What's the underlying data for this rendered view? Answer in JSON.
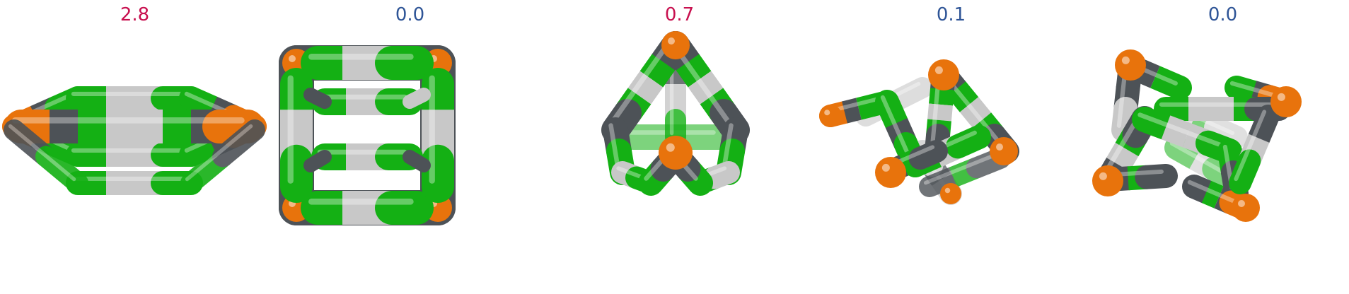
{
  "palette": {
    "orange": "#e8730c",
    "dark": "#4d5257",
    "green": "#14b014",
    "light": "#c8c8c8",
    "pos": "#c8104f",
    "neg": "#2f5597"
  },
  "panels": [
    {
      "score": "2.8",
      "score_color": "#c8104f",
      "icon": "flattened-hexagonal-cage-icon"
    },
    {
      "score": "0.0",
      "score_color": "#2f5597",
      "icon": "square-prism-cage-icon"
    },
    {
      "score": "0.7",
      "score_color": "#c8104f",
      "icon": "trigonal-prism-cage-icon"
    },
    {
      "score": "0.1",
      "score_color": "#2f5597",
      "icon": "twisted-cage-icon"
    },
    {
      "score": "0.0",
      "score_color": "#2f5597",
      "icon": "twisted-cube-cage-icon"
    }
  ]
}
